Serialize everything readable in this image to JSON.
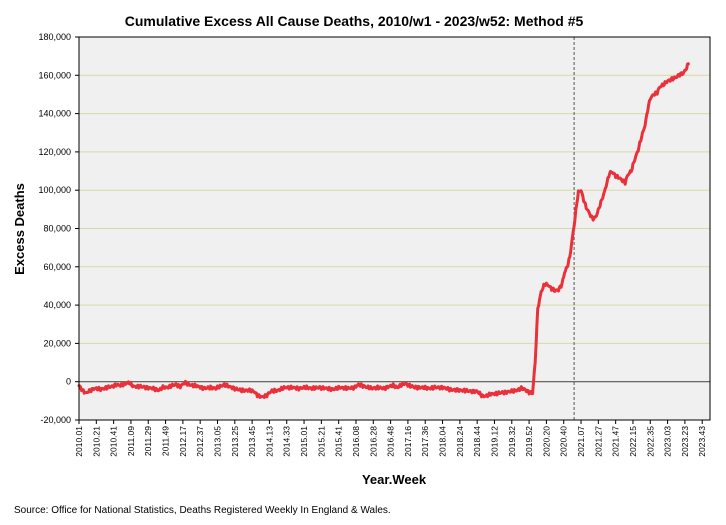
{
  "chart_data": {
    "type": "line",
    "title": "Cumulative Excess All Cause Deaths, 2010/w1 - 2023/w52: Method #5",
    "xlabel": "Year.Week",
    "ylabel": "Excess Deaths",
    "source": "Source: Office for National Statistics, Deaths Registered Weekly In England & Wales.",
    "ylim": [
      -20000,
      180000
    ],
    "yticks": [
      -20000,
      0,
      20000,
      40000,
      60000,
      80000,
      100000,
      120000,
      140000,
      160000,
      180000
    ],
    "ytick_labels": [
      "-20,000",
      "0",
      "20,000",
      "40,000",
      "60,000",
      "80,000",
      "100,000",
      "120,000",
      "140,000",
      "160,000",
      "180,000"
    ],
    "x_count": 730,
    "x_ticks": [
      {
        "index": 0,
        "label": "2010.01"
      },
      {
        "index": 20,
        "label": "2010.21"
      },
      {
        "index": 40,
        "label": "2010.41"
      },
      {
        "index": 60,
        "label": "2011.09"
      },
      {
        "index": 80,
        "label": "2011.29"
      },
      {
        "index": 100,
        "label": "2011.49"
      },
      {
        "index": 120,
        "label": "2012.17"
      },
      {
        "index": 140,
        "label": "2012.37"
      },
      {
        "index": 160,
        "label": "2013.05"
      },
      {
        "index": 180,
        "label": "2013.25"
      },
      {
        "index": 200,
        "label": "2013.45"
      },
      {
        "index": 220,
        "label": "2014.13"
      },
      {
        "index": 240,
        "label": "2014.33"
      },
      {
        "index": 260,
        "label": "2015.01"
      },
      {
        "index": 280,
        "label": "2015.21"
      },
      {
        "index": 300,
        "label": "2015.41"
      },
      {
        "index": 320,
        "label": "2016.08"
      },
      {
        "index": 340,
        "label": "2016.28"
      },
      {
        "index": 360,
        "label": "2016.48"
      },
      {
        "index": 380,
        "label": "2017.16"
      },
      {
        "index": 400,
        "label": "2017.36"
      },
      {
        "index": 420,
        "label": "2018.04"
      },
      {
        "index": 440,
        "label": "2018.24"
      },
      {
        "index": 460,
        "label": "2018.44"
      },
      {
        "index": 480,
        "label": "2019.12"
      },
      {
        "index": 500,
        "label": "2019.32"
      },
      {
        "index": 520,
        "label": "2019.52"
      },
      {
        "index": 540,
        "label": "2020.20"
      },
      {
        "index": 560,
        "label": "2020.40"
      },
      {
        "index": 580,
        "label": "2021.07"
      },
      {
        "index": 600,
        "label": "2021.27"
      },
      {
        "index": 620,
        "label": "2021.47"
      },
      {
        "index": 640,
        "label": "2022.15"
      },
      {
        "index": 660,
        "label": "2022.35"
      },
      {
        "index": 680,
        "label": "2023.03"
      },
      {
        "index": 700,
        "label": "2023.23"
      },
      {
        "index": 720,
        "label": "2023.43"
      }
    ],
    "vertical_marker_index": 572,
    "grid": true,
    "series": [
      {
        "name": "Cumulative Excess Deaths",
        "color": "#e8313a",
        "keypoints": [
          [
            0,
            -2000
          ],
          [
            4,
            -4500
          ],
          [
            8,
            -6000
          ],
          [
            13,
            -4500
          ],
          [
            18,
            -3500
          ],
          [
            25,
            -4000
          ],
          [
            33,
            -3000
          ],
          [
            38,
            -2500
          ],
          [
            43,
            -1500
          ],
          [
            48,
            -2000
          ],
          [
            53,
            -1000
          ],
          [
            58,
            -500
          ],
          [
            63,
            -2500
          ],
          [
            70,
            -2500
          ],
          [
            78,
            -3000
          ],
          [
            85,
            -3500
          ],
          [
            92,
            -4500
          ],
          [
            97,
            -3000
          ],
          [
            102,
            -3000
          ],
          [
            107,
            -2000
          ],
          [
            112,
            -1500
          ],
          [
            117,
            -2500
          ],
          [
            122,
            -500
          ],
          [
            127,
            -1500
          ],
          [
            132,
            -2000
          ],
          [
            138,
            -2500
          ],
          [
            145,
            -3500
          ],
          [
            152,
            -3000
          ],
          [
            158,
            -3500
          ],
          [
            163,
            -2500
          ],
          [
            168,
            -1500
          ],
          [
            173,
            -2500
          ],
          [
            180,
            -3500
          ],
          [
            187,
            -4500
          ],
          [
            195,
            -4500
          ],
          [
            202,
            -5000
          ],
          [
            207,
            -7500
          ],
          [
            212,
            -8000
          ],
          [
            217,
            -7000
          ],
          [
            222,
            -5000
          ],
          [
            230,
            -4500
          ],
          [
            238,
            -3000
          ],
          [
            246,
            -3000
          ],
          [
            254,
            -3500
          ],
          [
            262,
            -3000
          ],
          [
            270,
            -3500
          ],
          [
            278,
            -3000
          ],
          [
            286,
            -3500
          ],
          [
            294,
            -4000
          ],
          [
            302,
            -3000
          ],
          [
            310,
            -3500
          ],
          [
            318,
            -3000
          ],
          [
            323,
            -1500
          ],
          [
            330,
            -2500
          ],
          [
            338,
            -3500
          ],
          [
            345,
            -3000
          ],
          [
            352,
            -3500
          ],
          [
            358,
            -2500
          ],
          [
            363,
            -2000
          ],
          [
            368,
            -3000
          ],
          [
            373,
            -1500
          ],
          [
            377,
            -1000
          ],
          [
            382,
            -2000
          ],
          [
            388,
            -3000
          ],
          [
            396,
            -3000
          ],
          [
            404,
            -3500
          ],
          [
            412,
            -3000
          ],
          [
            420,
            -3000
          ],
          [
            428,
            -4000
          ],
          [
            436,
            -4500
          ],
          [
            444,
            -4500
          ],
          [
            452,
            -5000
          ],
          [
            460,
            -5000
          ],
          [
            466,
            -7500
          ],
          [
            470,
            -7500
          ],
          [
            476,
            -6500
          ],
          [
            484,
            -6000
          ],
          [
            492,
            -5500
          ],
          [
            500,
            -5000
          ],
          [
            506,
            -4500
          ],
          [
            511,
            -3500
          ],
          [
            515,
            -4000
          ],
          [
            520,
            -5500
          ],
          [
            524,
            -6000
          ],
          [
            527,
            10000
          ],
          [
            530,
            38000
          ],
          [
            534,
            47000
          ],
          [
            538,
            51000
          ],
          [
            542,
            50500
          ],
          [
            546,
            48500
          ],
          [
            550,
            47500
          ],
          [
            554,
            48000
          ],
          [
            558,
            51000
          ],
          [
            561,
            57000
          ],
          [
            564,
            60000
          ],
          [
            567,
            65000
          ],
          [
            570,
            75000
          ],
          [
            573,
            85000
          ],
          [
            575,
            93000
          ],
          [
            577,
            99000
          ],
          [
            580,
            100000
          ],
          [
            583,
            95000
          ],
          [
            586,
            91000
          ],
          [
            589,
            88500
          ],
          [
            592,
            86000
          ],
          [
            595,
            85000
          ],
          [
            598,
            87000
          ],
          [
            601,
            91000
          ],
          [
            604,
            95000
          ],
          [
            607,
            99000
          ],
          [
            610,
            104000
          ],
          [
            613,
            109000
          ],
          [
            616,
            109500
          ],
          [
            620,
            107500
          ],
          [
            624,
            106500
          ],
          [
            628,
            105000
          ],
          [
            631,
            104000
          ],
          [
            634,
            108000
          ],
          [
            638,
            110000
          ],
          [
            642,
            116000
          ],
          [
            646,
            121000
          ],
          [
            650,
            128000
          ],
          [
            654,
            134000
          ],
          [
            657,
            142000
          ],
          [
            660,
            148000
          ],
          [
            664,
            150000
          ],
          [
            668,
            151000
          ],
          [
            671,
            154000
          ],
          [
            675,
            155000
          ],
          [
            680,
            157000
          ],
          [
            685,
            158000
          ],
          [
            690,
            159000
          ],
          [
            694,
            160500
          ],
          [
            698,
            161000
          ],
          [
            701,
            163000
          ],
          [
            704,
            166000
          ]
        ]
      }
    ]
  }
}
